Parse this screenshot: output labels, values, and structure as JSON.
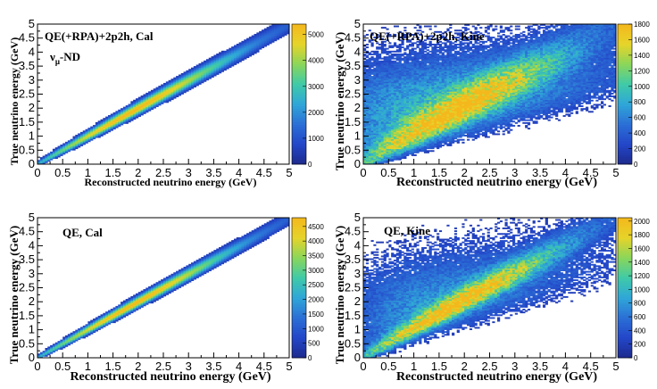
{
  "chart_data": [
    {
      "type": "heatmap",
      "title": "QE(+RPA)+2p2h, Cal",
      "subtitle": "ν_μ-ND",
      "xlabel": "Reconstructed neutrino energy (GeV)",
      "ylabel": "True neutrino energy (GeV)",
      "xlim": [
        0,
        5
      ],
      "ylim": [
        0,
        5
      ],
      "xticks": [
        "0",
        "0.5",
        "1",
        "1.5",
        "2",
        "2.5",
        "3",
        "3.5",
        "4",
        "4.5",
        "5"
      ],
      "yticks": [
        "0",
        "0.5",
        "1",
        "1.5",
        "2",
        "2.5",
        "3",
        "3.5",
        "4",
        "4.5",
        "5"
      ],
      "zlim": [
        0,
        5400
      ],
      "colorbar_ticks": [
        0,
        1000,
        2000,
        3000,
        4000,
        5000
      ],
      "peak_energy": 1.9,
      "band_width": 0.09,
      "band_tail": 0.0,
      "band_bias": 0.0,
      "tail_weight": 0.0
    },
    {
      "type": "heatmap",
      "title": "QE(+RPA)+2p2h, Kine",
      "xlabel": "Reconstructed neutrino energy (GeV)",
      "ylabel": "True neutrino energy (GeV)",
      "xlim": [
        0,
        5
      ],
      "ylim": [
        0,
        5
      ],
      "xticks": [
        "0",
        "0.5",
        "1",
        "1.5",
        "2",
        "2.5",
        "3",
        "3.5",
        "4",
        "4.5",
        "5"
      ],
      "yticks": [
        "0",
        "0.5",
        "1",
        "1.5",
        "2",
        "2.5",
        "3",
        "3.5",
        "4",
        "4.5",
        "5"
      ],
      "zlim": [
        0,
        1800
      ],
      "colorbar_ticks": [
        0,
        200,
        400,
        600,
        800,
        1000,
        1200,
        1400,
        1600,
        1800
      ],
      "peak_energy": 1.9,
      "band_width": 0.3,
      "band_tail": 0.85,
      "band_bias": 0.18,
      "tail_weight": 0.28
    },
    {
      "type": "heatmap",
      "title": "QE, Cal",
      "xlabel": "Reconstructed neutrino energy (GeV)",
      "ylabel": "True neutrino energy (GeV)",
      "xlim": [
        0,
        5
      ],
      "ylim": [
        0,
        5
      ],
      "xticks": [
        "0",
        "0.5",
        "1",
        "1.5",
        "2",
        "2.5",
        "3",
        "3.5",
        "4",
        "4.5",
        "5"
      ],
      "yticks": [
        "0",
        "0.5",
        "1",
        "1.5",
        "2",
        "2.5",
        "3",
        "3.5",
        "4",
        "4.5",
        "5"
      ],
      "zlim": [
        0,
        4800
      ],
      "colorbar_ticks": [
        0,
        500,
        1000,
        1500,
        2000,
        2500,
        3000,
        3500,
        4000,
        4500
      ],
      "peak_energy": 1.9,
      "band_width": 0.08,
      "band_tail": 0.0,
      "band_bias": 0.0,
      "tail_weight": 0.0
    },
    {
      "type": "heatmap",
      "title": "QE, Kine",
      "xlabel": "Reconstructed neutrino energy (GeV)",
      "ylabel": "True neutrino energy (GeV)",
      "xlim": [
        0,
        5
      ],
      "ylim": [
        0,
        5
      ],
      "xticks": [
        "0",
        "0.5",
        "1",
        "1.5",
        "2",
        "2.5",
        "3",
        "3.5",
        "4",
        "4.5",
        "5"
      ],
      "yticks": [
        "0",
        "0.5",
        "1",
        "1.5",
        "2",
        "2.5",
        "3",
        "3.5",
        "4",
        "4.5",
        "5"
      ],
      "zlim": [
        0,
        2050
      ],
      "colorbar_ticks": [
        0,
        200,
        400,
        600,
        800,
        1000,
        1200,
        1400,
        1600,
        1800,
        2000
      ],
      "peak_energy": 1.9,
      "band_width": 0.2,
      "band_tail": 0.7,
      "band_bias": 0.12,
      "tail_weight": 0.18
    }
  ],
  "colors": {
    "palette": [
      "#ffffff",
      "#1d2a8c",
      "#2346c8",
      "#2b6fd6",
      "#2fa6d8",
      "#3fcaa8",
      "#8ad65a",
      "#e6d42a",
      "#f4b81c"
    ]
  }
}
